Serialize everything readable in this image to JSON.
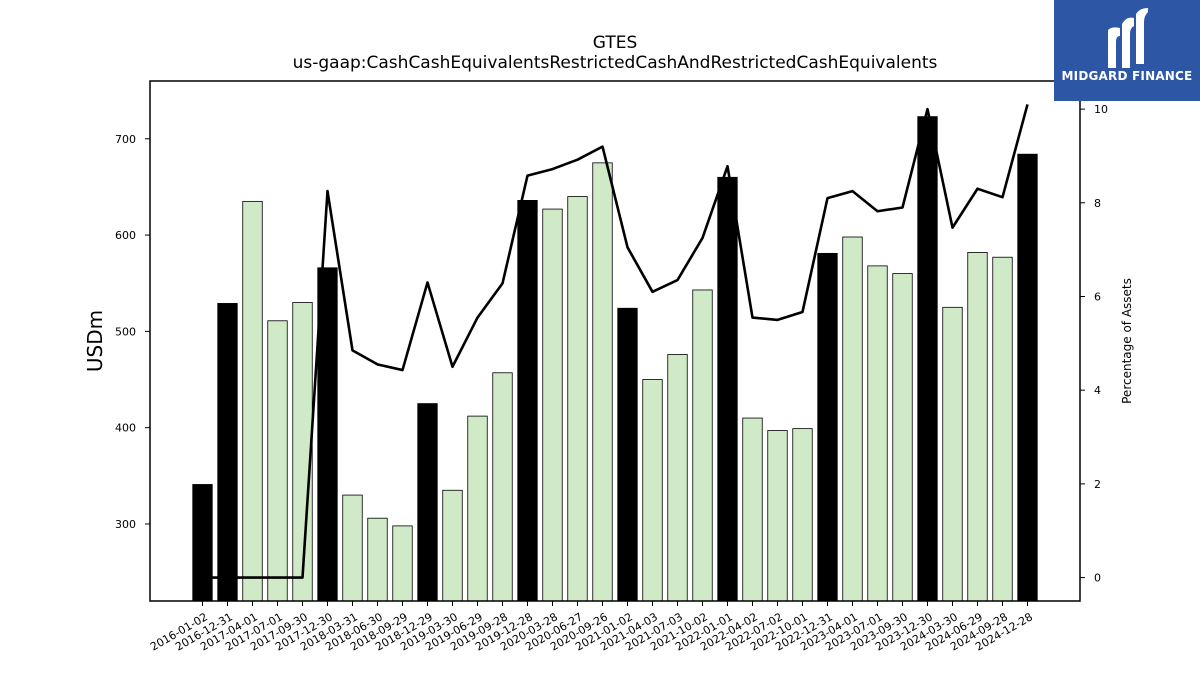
{
  "chart_data": {
    "type": "bar",
    "title": "GTES",
    "subtitle": "us-gaap:CashCashEquivalentsRestrictedCashAndRestrictedCashEquivalents",
    "ylabel": "USDm",
    "y2label": "Percentage of Assets",
    "ylim": [
      220,
      760
    ],
    "y2lim": [
      -0.5,
      10.6
    ],
    "yticks": [
      300,
      400,
      500,
      600,
      700
    ],
    "y2ticks": [
      0,
      2,
      4,
      6,
      8,
      10
    ],
    "grid": false,
    "categories": [
      "2016-01-02",
      "2016-12-31",
      "2017-04-01",
      "2017-07-01",
      "2017-09-30",
      "2017-12-30",
      "2018-03-31",
      "2018-06-30",
      "2018-09-29",
      "2018-12-29",
      "2019-03-30",
      "2019-06-29",
      "2019-09-28",
      "2019-12-28",
      "2020-03-28",
      "2020-06-27",
      "2020-09-26",
      "2021-01-02",
      "2021-04-03",
      "2021-07-03",
      "2021-10-02",
      "2022-01-01",
      "2022-04-02",
      "2022-07-02",
      "2022-10-01",
      "2022-12-31",
      "2023-04-01",
      "2023-07-01",
      "2023-09-30",
      "2023-12-30",
      "2024-03-30",
      "2024-06-29",
      "2024-09-28",
      "2024-12-28"
    ],
    "series": [
      {
        "type": "bar",
        "values": [
          341,
          529,
          635,
          511,
          530,
          566,
          330,
          306,
          298,
          425,
          335,
          412,
          457,
          636,
          627,
          640,
          675,
          524,
          450,
          476,
          543,
          660,
          410,
          397,
          399,
          581,
          598,
          568,
          560,
          723,
          525,
          582,
          577,
          684
        ],
        "highlight": [
          true,
          true,
          false,
          false,
          false,
          true,
          false,
          false,
          false,
          true,
          false,
          false,
          false,
          true,
          false,
          false,
          false,
          true,
          false,
          false,
          false,
          true,
          false,
          false,
          false,
          true,
          false,
          false,
          false,
          true,
          false,
          false,
          false,
          true
        ],
        "color": "#d0e9c6",
        "highlight_color": "#000000"
      },
      {
        "type": "line",
        "axis": "right",
        "values": [
          0,
          0,
          0,
          0,
          0,
          8.25,
          4.85,
          4.55,
          4.43,
          6.3,
          4.5,
          5.55,
          6.28,
          8.58,
          8.72,
          8.92,
          9.2,
          7.05,
          6.1,
          6.35,
          7.25,
          8.78,
          5.55,
          5.5,
          5.67,
          8.1,
          8.25,
          7.82,
          7.9,
          10.0,
          7.47,
          8.3,
          8.12,
          10.1
        ],
        "color": "#000000"
      }
    ]
  },
  "logo": {
    "text": "MIDGARD FINANCE",
    "bg_color": "#2d57a5"
  }
}
